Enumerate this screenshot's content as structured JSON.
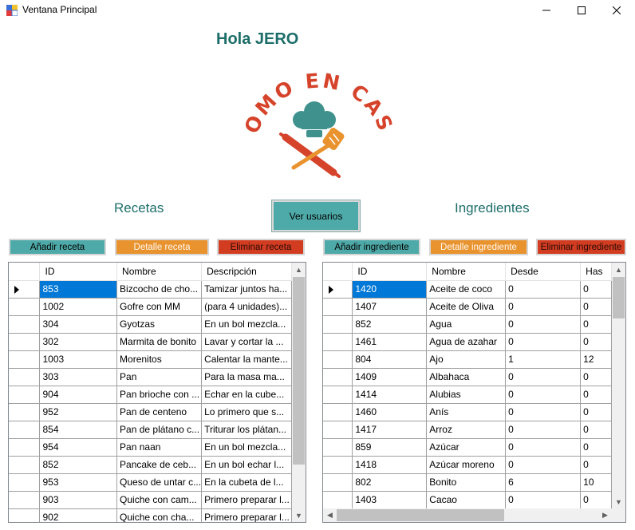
{
  "window": {
    "title": "Ventana Principal",
    "minimize": "—",
    "maximize": "☐",
    "close": "✕"
  },
  "greeting": "Hola JERO",
  "logo": {
    "text": "COMO EN CASA"
  },
  "sections": {
    "recetas": "Recetas",
    "ingredientes": "Ingredientes"
  },
  "ver_usuarios": "Ver usuarios",
  "recetas_buttons": {
    "add": "Añadir receta",
    "detail": "Detalle receta",
    "delete": "Eliminar receta"
  },
  "ingredientes_buttons": {
    "add": "Añadir ingrediente",
    "detail": "Detalle ingrediente",
    "delete": "Eliminar ingrediente"
  },
  "recetas_grid": {
    "columns": [
      "ID",
      "Nombre",
      "Descripción"
    ],
    "rows": [
      [
        "853",
        "Bizcocho de cho...",
        "Tamizar juntos ha..."
      ],
      [
        "1002",
        "Gofre con MM",
        "(para 4 unidades)..."
      ],
      [
        "304",
        "Gyotzas",
        "En un bol mezcla..."
      ],
      [
        "302",
        "Marmita de bonito",
        "Lavar y cortar la ..."
      ],
      [
        "1003",
        "Morenitos",
        "Calentar la mante..."
      ],
      [
        "303",
        "Pan",
        "Para la masa ma..."
      ],
      [
        "904",
        "Pan brioche con ...",
        "Echar en la cube..."
      ],
      [
        "952",
        "Pan de centeno",
        "Lo primero que s..."
      ],
      [
        "854",
        "Pan de plátano c...",
        "Triturar los plátan..."
      ],
      [
        "954",
        "Pan naan",
        "En un bol mezcla..."
      ],
      [
        "852",
        "Pancake de ceb...",
        "En un bol echar l..."
      ],
      [
        "953",
        "Queso de untar c...",
        "En la cubeta de l..."
      ],
      [
        "903",
        "Quiche con cam...",
        "Primero preparar l..."
      ],
      [
        "902",
        "Quiche con cha...",
        "Primero preparar l..."
      ]
    ]
  },
  "ingredientes_grid": {
    "columns": [
      "ID",
      "Nombre",
      "Desde",
      "Has"
    ],
    "rows": [
      [
        "1420",
        "Aceite de coco",
        "0",
        "0"
      ],
      [
        "1407",
        "Aceite de Oliva",
        "0",
        "0"
      ],
      [
        "852",
        "Agua",
        "0",
        "0"
      ],
      [
        "1461",
        "Agua de azahar",
        "0",
        "0"
      ],
      [
        "804",
        "Ajo",
        "1",
        "12"
      ],
      [
        "1409",
        "Albahaca",
        "0",
        "0"
      ],
      [
        "1414",
        "Alubias",
        "0",
        "0"
      ],
      [
        "1460",
        "Anís",
        "0",
        "0"
      ],
      [
        "1417",
        "Arroz",
        "0",
        "0"
      ],
      [
        "859",
        "Azúcar",
        "0",
        "0"
      ],
      [
        "1418",
        "Azúcar moreno",
        "0",
        "0"
      ],
      [
        "802",
        "Bonito",
        "6",
        "10"
      ],
      [
        "1403",
        "Cacao",
        "0",
        "0"
      ]
    ]
  }
}
